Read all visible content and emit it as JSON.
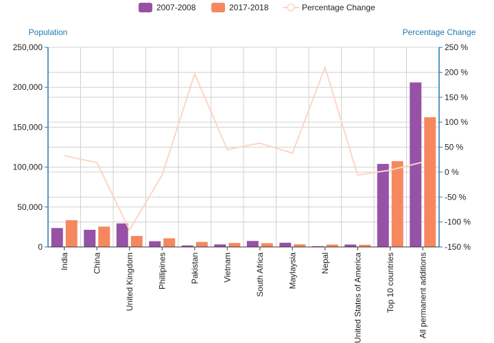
{
  "chart_data": {
    "type": "bar",
    "categories": [
      "India",
      "China",
      "United Kingdom",
      "Phillipines",
      "Pakistan",
      "Vietnam",
      "South Africa",
      "Maylaysia",
      "Nepal",
      "United States of America",
      "Top 10 countries",
      "All permanent additions"
    ],
    "series": [
      {
        "name": "2007-2008",
        "type": "bar",
        "axis": "left",
        "color": "#9652a6",
        "values": [
          23700,
          21500,
          29500,
          7200,
          1900,
          3200,
          7500,
          5300,
          1000,
          3000,
          104000,
          206000
        ]
      },
      {
        "name": "2017-2018",
        "type": "bar",
        "axis": "left",
        "color": "#f6885f",
        "values": [
          33500,
          25500,
          13800,
          10800,
          6300,
          5000,
          4700,
          3300,
          3000,
          2700,
          107500,
          162500
        ]
      },
      {
        "name": "Percentage Change",
        "type": "line",
        "axis": "right",
        "color": "#fdd5c4",
        "values": [
          33,
          19,
          -116,
          -6,
          197,
          45,
          58,
          38,
          210,
          -6,
          4,
          20
        ]
      }
    ],
    "y_left": {
      "label": "Population",
      "range": [
        0,
        250000
      ],
      "ticks": [
        "0",
        "50,000",
        "100,000",
        "150,000",
        "200,000",
        "250,000"
      ]
    },
    "y_right": {
      "label": "Percentage Change",
      "range": [
        -150,
        250
      ],
      "ticks": [
        "-150 %",
        "-100 %",
        "-50 %",
        "0 %",
        "50 %",
        "100 %",
        "150 %",
        "200 %",
        "250 %"
      ]
    },
    "grid": true,
    "legend_position": "top-center"
  }
}
